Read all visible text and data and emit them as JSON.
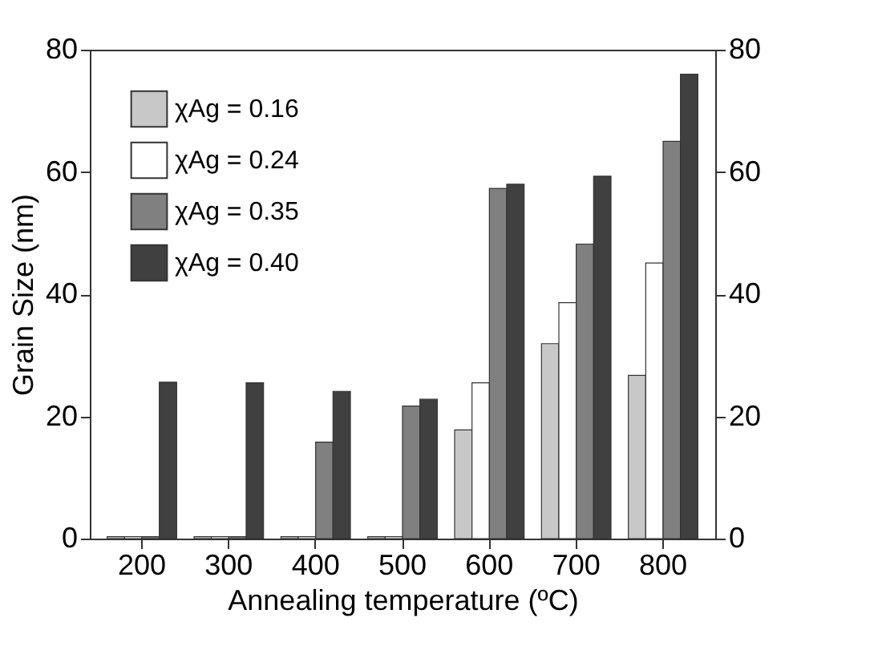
{
  "chart_data": {
    "type": "bar",
    "xlabel": "Annealing temperature (ºC)",
    "ylabel": "Grain Size (nm)",
    "categories": [
      "200",
      "300",
      "400",
      "500",
      "600",
      "700",
      "800"
    ],
    "series": [
      {
        "name": "χAg = 0.16",
        "color": "#c8c8c8",
        "values": [
          0.3,
          0.3,
          0.3,
          0.3,
          17.8,
          31.9,
          26.7
        ]
      },
      {
        "name": "χAg = 0.24",
        "color": "#ffffff",
        "values": [
          0.3,
          0.3,
          0.3,
          0.3,
          25.5,
          38.6,
          45.1
        ]
      },
      {
        "name": "χAg = 0.35",
        "color": "#808080",
        "values": [
          0.3,
          0.3,
          15.8,
          21.7,
          57.3,
          48.2,
          65
        ]
      },
      {
        "name": "χAg = 0.40",
        "color": "#404040",
        "values": [
          25.6,
          25.5,
          24.1,
          22.8,
          58,
          59.3,
          76
        ]
      }
    ],
    "ylim": [
      0,
      80
    ],
    "yticks": [
      0,
      20,
      40,
      60,
      80
    ],
    "y2lim": [
      0,
      80
    ],
    "y2ticks": [
      0,
      20,
      40,
      60,
      80
    ],
    "grid": false,
    "legend": "top left"
  }
}
